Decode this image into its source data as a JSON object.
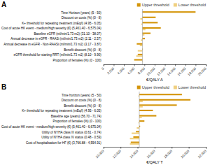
{
  "chart_data": [
    {
      "type": "bar",
      "orientation": "horizontal",
      "title": "A",
      "xlabel": "€/QALY A",
      "categories": [
        "Time Horizon (years) (5 - 50)",
        "Discount on costs (%) (0 - 8)",
        "K+ threshold for repeating treatment (mEq/l) (4.95 - 6.05)",
        "Cost of acute HK event - medium/high severity (€) (5,461.40 - 6,575.04)",
        "Baseline eGFR (ml/min/1.73 m2) (31.10 - 38.07)",
        "Annual decrease in eGFR - RAASi (ml/min/1.73 m2) (2.11 - 2.57)",
        "Annual decrease in eGFR - Non-RAASi (ml/min/1.73 m2) (3.17 - 3.87)",
        "Benefit discount (%) (0 - 8)",
        "eGFR threshold for starting RRT (ml/min/1.73 m2) (8.10 - 9.90)",
        "Proportion of females (%) (0 - 100)"
      ],
      "series": [
        {
          "name": "Upper threshold",
          "color": "#D4950A",
          "values": [
            18000,
            10200,
            10600,
            11200,
            9200,
            8100,
            6500,
            7700,
            6700,
            6000
          ]
        },
        {
          "name": "Lower threshold",
          "color": "#F0D080",
          "values": [
            7610,
            7200,
            7400,
            8200,
            8000,
            7300,
            7100,
            6700,
            6400,
            7700
          ]
        }
      ],
      "base_case": 7610,
      "xlim": [
        0,
        20000
      ],
      "xticks": [
        0,
        {
          "value": 2000,
          "label": "2.000"
        },
        {
          "value": 4000,
          "label": "4.000"
        },
        {
          "value": 6000,
          "label": "6.000"
        },
        {
          "value": 8000,
          "label": "8.000"
        },
        {
          "value": 10000,
          "label": "10.000"
        },
        {
          "value": 12000,
          "label": "12.000"
        },
        {
          "value": 14000,
          "label": "14.000"
        },
        {
          "value": 16000,
          "label": "16.000"
        },
        {
          "value": 18000,
          "label": "18.000"
        },
        {
          "value": 20000,
          "label": "20.000"
        }
      ],
      "legend": "upper right"
    },
    {
      "type": "bar",
      "orientation": "horizontal",
      "title": "B",
      "xlabel": "€/QALY T",
      "categories": [
        "Time horizon (years) (5 - 50)",
        "Discount on costs (%) (0 - 8)",
        "Benefit discount (%) (0 - 8)",
        "K+ threshold for repeating treatment (mEq/l) (4.95 - 6.05)",
        "Baseline age (years) (56.70 - 71.74)",
        "Proportion of females (%) (0 - 100)",
        "Cost of acute HK event - medium/high severity (€) (5,461.40 - 6,675.04)",
        "Utility of NYHA class III status (0.61 - 0.74)",
        "Utility of NYHA class IV status (0.48 - 0.59)",
        "Cost of hospitalisation for HF (€) (3,766.88 - 4,554.91)"
      ],
      "series": [
        {
          "name": "Upper threshold",
          "color": "#D4950A",
          "values": [
            19200,
            20200,
            18600,
            15800,
            16200,
            14800,
            14300,
            13800,
            13500,
            13200
          ]
        },
        {
          "name": "Lower threshold",
          "color": "#F0D080",
          "values": [
            14100,
            14600,
            14600,
            14200,
            14500,
            14100,
            13900,
            13300,
            13100,
            13100
          ]
        }
      ],
      "base_case": 14200,
      "xlim": [
        10000,
        22000
      ],
      "xticks": [
        {
          "value": 10000,
          "label": "10.000"
        },
        {
          "value": 12000,
          "label": "12.000"
        },
        {
          "value": 14000,
          "label": "14.000"
        },
        {
          "value": 16000,
          "label": "16.000"
        },
        {
          "value": 18000,
          "label": "18.000"
        },
        {
          "value": 20000,
          "label": "20.000"
        },
        {
          "value": 22000,
          "label": "22.000"
        }
      ],
      "legend": "upper right"
    }
  ]
}
